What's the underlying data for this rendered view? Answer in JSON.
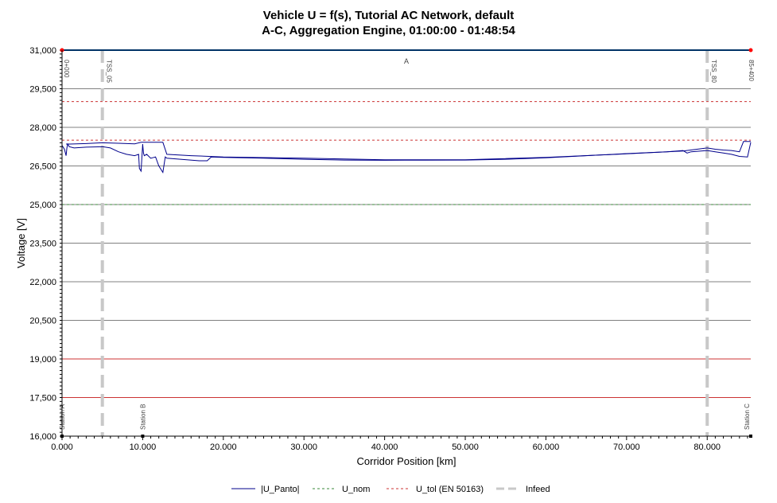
{
  "chart_data": {
    "type": "line",
    "title_line1": "Vehicle U = f(s),  Tutorial AC Network, default",
    "title_line2": "A-C, Aggregation Engine, 01:00:00 - 01:48:54",
    "xlabel": "Corridor  Position [km]",
    "ylabel": "Voltage [V]",
    "xlim": [
      0,
      85.4
    ],
    "ylim": [
      16000,
      31000
    ],
    "x_ticks": [
      0,
      10,
      20,
      30,
      40,
      50,
      60,
      70,
      80
    ],
    "x_tick_labels": [
      "0.000",
      "10.000",
      "20.000",
      "30.000",
      "40.000",
      "50.000",
      "60.000",
      "70.000",
      "80.000"
    ],
    "y_ticks": [
      16000,
      17500,
      19000,
      20500,
      22000,
      23500,
      25000,
      26500,
      28000,
      29500,
      31000
    ],
    "y_tick_labels": [
      "16,000",
      "17,500",
      "19,000",
      "20,500",
      "22,000",
      "23,500",
      "25,000",
      "26,500",
      "28,000",
      "29,500",
      "31,000"
    ],
    "grid": true,
    "legend_position": "bottom",
    "colors": {
      "panto": "#00008b",
      "u_nom": "#3a8a3a",
      "u_tol": "#cc3333",
      "infeed": "#c8c8c8",
      "top_line": "#003366",
      "marker": "#ff0000"
    },
    "series": [
      {
        "name": "|U_Panto|",
        "style": "solid",
        "x": [
          0,
          0.3,
          0.5,
          0.6,
          0.7,
          0.9,
          1.5,
          3,
          5,
          6,
          7,
          8,
          9,
          9.5,
          9.6,
          9.8,
          10,
          10.1,
          10.2,
          10.5,
          11,
          11.6,
          12,
          12.5,
          12.8,
          13,
          15,
          17,
          18,
          18.5,
          20,
          25,
          30,
          35,
          40,
          45,
          50,
          55,
          60,
          65,
          70,
          75,
          77,
          77.5,
          78,
          80,
          81,
          82,
          83,
          84,
          85,
          85.4
        ],
        "y": [
          27300,
          27150,
          26900,
          27200,
          27350,
          27250,
          27200,
          27230,
          27250,
          27200,
          27050,
          26950,
          26900,
          26950,
          26400,
          26300,
          27350,
          27000,
          26900,
          26950,
          26800,
          26850,
          26500,
          26250,
          26850,
          26800,
          26750,
          26700,
          26700,
          26850,
          26830,
          26800,
          26760,
          26730,
          26720,
          26725,
          26730,
          26760,
          26820,
          26900,
          26980,
          27050,
          27100,
          27000,
          27050,
          27100,
          27050,
          27000,
          26950,
          26870,
          26850,
          27420
        ]
      },
      {
        "name": "|U_Panto|",
        "style": "solid",
        "x": [
          0.5,
          1,
          3,
          5,
          7,
          9,
          9.8,
          10,
          11.5,
          12.5,
          13,
          16,
          20,
          30,
          40,
          50,
          60,
          70,
          77,
          80,
          81,
          82,
          83,
          84,
          84.5,
          85,
          85.4
        ],
        "y": [
          27350,
          27350,
          27370,
          27400,
          27380,
          27360,
          27420,
          27420,
          27420,
          27420,
          26950,
          26900,
          26850,
          26800,
          26740,
          26740,
          26830,
          26970,
          27080,
          27200,
          27150,
          27120,
          27100,
          27050,
          27450,
          27450,
          27450
        ]
      }
    ],
    "reference_lines": [
      {
        "name": "U_nom",
        "y": 25000,
        "style": "dashed"
      },
      {
        "name": "U_tol (EN 50163)",
        "y": 29000,
        "style": "dashed"
      },
      {
        "name": "U_tol (EN 50163)",
        "y": 27500,
        "style": "dashed"
      },
      {
        "name": "U_tol (EN 50163)",
        "y": 19000,
        "style": "solid"
      },
      {
        "name": "U_tol (EN 50163)",
        "y": 17500,
        "style": "solid"
      }
    ],
    "infeed": [
      {
        "x": 5,
        "label": "TSS_05"
      },
      {
        "x": 80,
        "label": "TSS_80"
      }
    ],
    "top_labels": [
      {
        "x": 0,
        "label": "0+000",
        "rotate": true
      },
      {
        "x": 42.7,
        "label": "A",
        "rotate": false
      },
      {
        "x": 85.4,
        "label": "85+400",
        "rotate": true
      }
    ],
    "stations": [
      {
        "x": 0,
        "label": "Station A"
      },
      {
        "x": 10,
        "label": "Station B"
      },
      {
        "x": 85.4,
        "label": "Station C"
      }
    ],
    "legend": [
      {
        "label": "|U_Panto|",
        "key": "panto",
        "style": "solid"
      },
      {
        "label": "U_nom",
        "key": "u_nom",
        "style": "dashed"
      },
      {
        "label": "U_tol (EN 50163)",
        "key": "u_tol",
        "style": "dashed"
      },
      {
        "label": "Infeed",
        "key": "infeed",
        "style": "dashed-thick"
      }
    ]
  }
}
